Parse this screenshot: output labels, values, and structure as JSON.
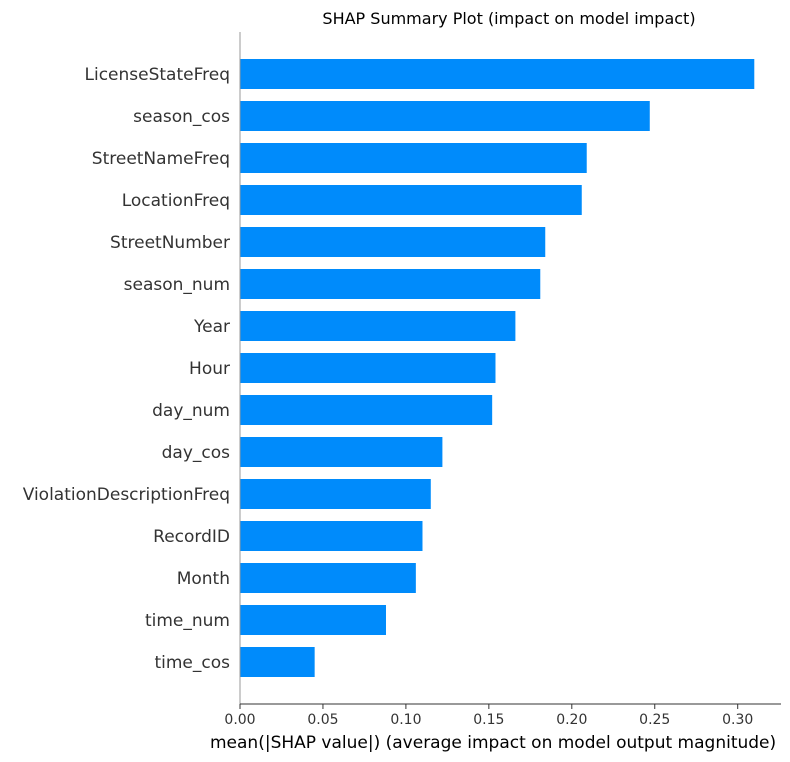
{
  "chart_data": {
    "type": "bar",
    "orientation": "horizontal",
    "title": "SHAP Summary Plot (impact on model impact)",
    "xlabel": "mean(|SHAP value|) (average impact on model output magnitude)",
    "ylabel": "",
    "xlim": [
      0,
      0.33
    ],
    "xticks": [
      "0.00",
      "0.05",
      "0.10",
      "0.15",
      "0.20",
      "0.25",
      "0.30"
    ],
    "bar_color": "#008bfb",
    "categories": [
      "LicenseStateFreq",
      "season_cos",
      "StreetNameFreq",
      "LocationFreq",
      "StreetNumber",
      "season_num",
      "Year",
      "Hour",
      "day_num",
      "day_cos",
      "ViolationDescriptionFreq",
      "RecordID",
      "Month",
      "time_num",
      "time_cos"
    ],
    "values": [
      0.31,
      0.247,
      0.209,
      0.206,
      0.184,
      0.181,
      0.166,
      0.154,
      0.152,
      0.122,
      0.115,
      0.11,
      0.106,
      0.088,
      0.045
    ]
  }
}
